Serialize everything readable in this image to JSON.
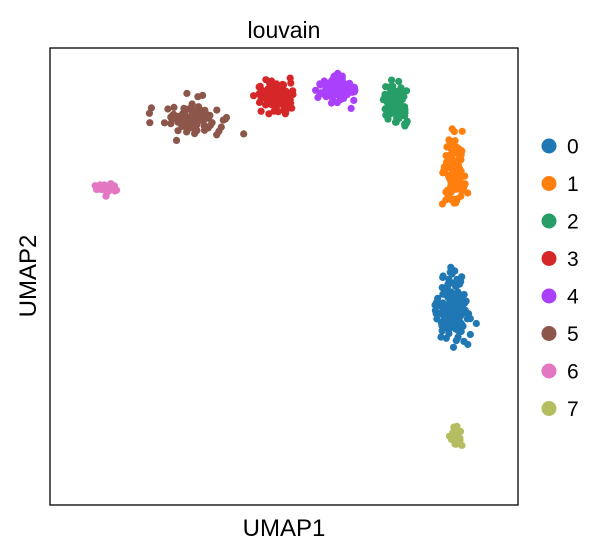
{
  "chart_data": {
    "type": "scatter",
    "title": "louvain",
    "xlabel": "UMAP1",
    "ylabel": "UMAP2",
    "xticks": [],
    "yticks": [],
    "grid": false,
    "legend_position": "right",
    "x_range": [
      -8.0,
      10.0
    ],
    "y_range": [
      -6.0,
      11.0
    ],
    "categories": [
      "0",
      "1",
      "2",
      "3",
      "4",
      "5",
      "6",
      "7"
    ],
    "colors": [
      "#1f77b4",
      "#ff7f0e",
      "#279e68",
      "#d62728",
      "#aa40fc",
      "#8c564b",
      "#e377c2",
      "#b5bd61"
    ],
    "series": [
      {
        "name": "0",
        "color": "#1f77b4",
        "center": [
          7.5,
          1.3
        ],
        "spread": [
          1.1,
          1.9
        ],
        "n": 170
      },
      {
        "name": "1",
        "color": "#ff7f0e",
        "center": [
          7.5,
          6.4
        ],
        "spread": [
          0.75,
          2.1
        ],
        "n": 120
      },
      {
        "name": "2",
        "color": "#279e68",
        "center": [
          5.3,
          9.0
        ],
        "spread": [
          0.75,
          1.2
        ],
        "n": 90
      },
      {
        "name": "3",
        "color": "#d62728",
        "center": [
          0.7,
          9.2
        ],
        "spread": [
          1.3,
          0.9
        ],
        "n": 110
      },
      {
        "name": "4",
        "color": "#aa40fc",
        "center": [
          3.1,
          9.5
        ],
        "spread": [
          1.1,
          0.8
        ],
        "n": 100
      },
      {
        "name": "5",
        "color": "#8c564b",
        "center": [
          -2.5,
          8.3
        ],
        "spread": [
          2.1,
          1.2
        ],
        "n": 95
      },
      {
        "name": "6",
        "color": "#e377c2",
        "center": [
          -5.8,
          5.8
        ],
        "spread": [
          0.7,
          0.35
        ],
        "n": 18
      },
      {
        "name": "7",
        "color": "#b5bd61",
        "center": [
          7.6,
          -3.4
        ],
        "spread": [
          0.35,
          0.9
        ],
        "n": 24
      }
    ]
  }
}
